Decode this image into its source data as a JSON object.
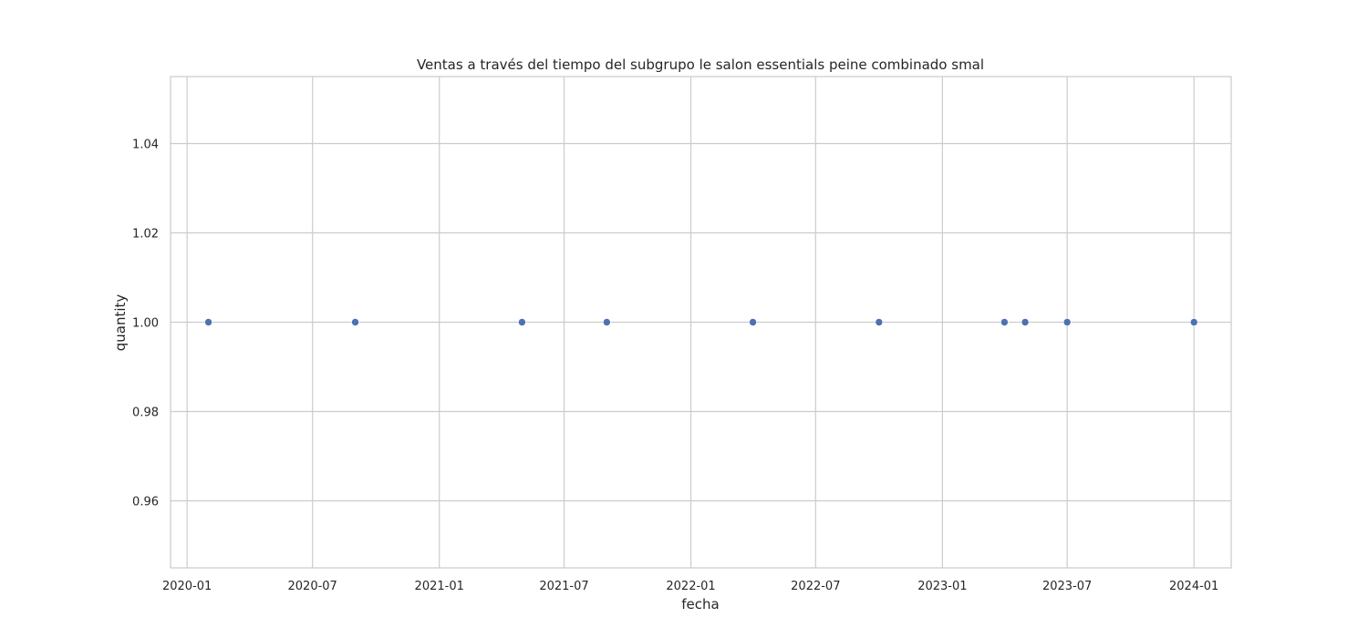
{
  "chart_data": {
    "type": "scatter",
    "title": "Ventas a través del tiempo del subgrupo le salon essentials peine combinado smal",
    "xlabel": "fecha",
    "ylabel": "quantity",
    "x": [
      "2020-02-01",
      "2020-09-01",
      "2021-05-01",
      "2021-09-01",
      "2022-04-01",
      "2022-10-01",
      "2023-04-01",
      "2023-05-01",
      "2023-07-01",
      "2024-01-01"
    ],
    "y": [
      1,
      1,
      1,
      1,
      1,
      1,
      1,
      1,
      1,
      1
    ],
    "xlim": [
      "2019-12-08",
      "2024-02-24"
    ],
    "ylim": [
      0.945,
      1.055
    ],
    "xticks": [
      "2020-01",
      "2020-07",
      "2021-01",
      "2021-07",
      "2022-01",
      "2022-07",
      "2023-01",
      "2023-07",
      "2024-01"
    ],
    "xtick_dates": [
      "2020-01-01",
      "2020-07-01",
      "2021-01-01",
      "2021-07-01",
      "2022-01-01",
      "2022-07-01",
      "2023-01-01",
      "2023-07-01",
      "2024-01-01"
    ],
    "yticks": [
      "0.96",
      "0.98",
      "1.00",
      "1.02",
      "1.04"
    ],
    "grid": true,
    "marker_color": "#4c72b0",
    "grid_color": "#cccccc",
    "spine_color": "#cccccc"
  }
}
